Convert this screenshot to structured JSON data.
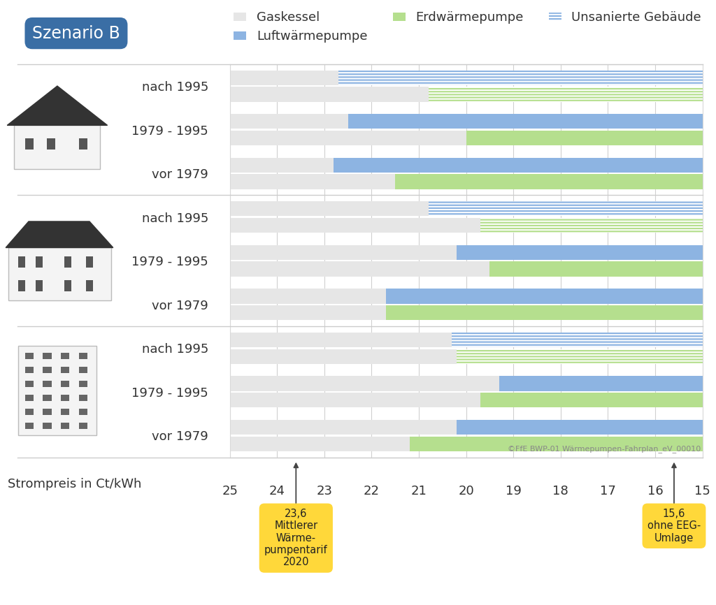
{
  "chart_data": {
    "type": "bar",
    "orientation": "horizontal",
    "title": "Szenario B",
    "x_label": "Strompreis in Ct/kWh",
    "categories": [
      "nach 1995",
      "1979 - 1995",
      "vor 1979",
      "nach 1995",
      "1979 - 1995",
      "vor 1979",
      "nach 1995",
      "1979 - 1995",
      "vor 1979"
    ],
    "xlim": [
      25,
      15
    ],
    "xticks": [
      25,
      24,
      23,
      22,
      21,
      20,
      19,
      18,
      17,
      16,
      15
    ],
    "grid": true,
    "legend": "upper right",
    "base": {
      "name": "Gaskessel",
      "color": "#e6e6e6"
    },
    "series": [
      {
        "name": "Luftwärmepumpe",
        "color": "#8db4e2",
        "values": [
          22.7,
          22.5,
          22.8,
          20.8,
          20.2,
          21.7,
          20.3,
          19.3,
          20.2
        ]
      },
      {
        "name": "Erdwärmepumpe",
        "color": "#b5df8e",
        "values": [
          20.8,
          20.0,
          21.5,
          19.7,
          19.5,
          21.7,
          20.2,
          19.7,
          21.2
        ]
      }
    ],
    "hatched": {
      "name": "Unsanierte Gebäude",
      "rows": [
        true,
        false,
        false,
        true,
        false,
        false,
        true,
        false,
        false
      ]
    },
    "annotations": [
      {
        "value": 23.6,
        "label": "23,6",
        "text": "Mittlerer\nWärme-\npumpentarif\n2020"
      },
      {
        "value": 15.6,
        "label": "15,6",
        "text": "ohne EEG-\nUmlage"
      }
    ],
    "source": "©FfE BWP-01 Wärmepumpen-Fahrplan_eV_00010"
  }
}
